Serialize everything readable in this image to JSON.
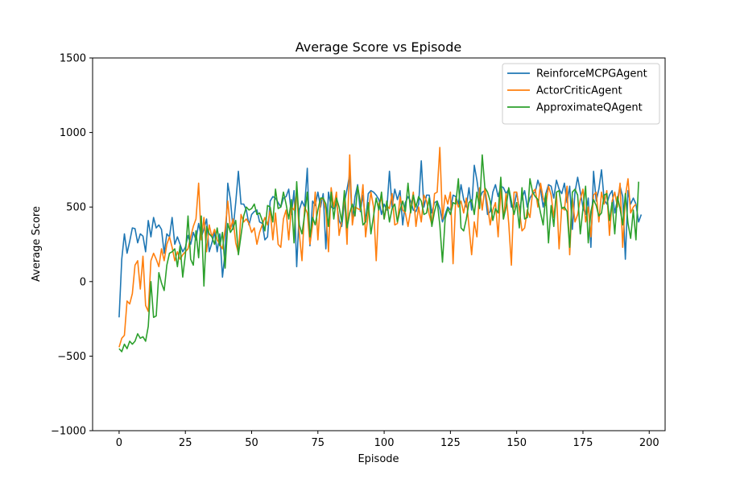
{
  "chart_data": {
    "type": "line",
    "title": "Average Score vs Episode",
    "xlabel": "Episode",
    "ylabel": "Average Score",
    "xlim": [
      -10,
      206
    ],
    "ylim": [
      -1000,
      1500
    ],
    "xticks": [
      "0",
      "25",
      "50",
      "75",
      "100",
      "125",
      "150",
      "175",
      "200"
    ],
    "yticks": [
      "−1000",
      "−500",
      "0",
      "500",
      "1000",
      "1500"
    ],
    "xtick_values": [
      0,
      25,
      50,
      75,
      100,
      125,
      150,
      175,
      200
    ],
    "ytick_values": [
      -1000,
      -500,
      0,
      500,
      1000,
      1500
    ],
    "grid": false,
    "legend_position": "top-right",
    "series": [
      {
        "name": "ReinforceMCPGAgent",
        "color": "#1f77b4",
        "values": [
          -240,
          150,
          320,
          190,
          270,
          360,
          355,
          260,
          320,
          305,
          200,
          410,
          300,
          430,
          360,
          380,
          350,
          190,
          320,
          300,
          430,
          250,
          300,
          250,
          200,
          230,
          310,
          250,
          330,
          280,
          390,
          300,
          350,
          420,
          200,
          260,
          330,
          200,
          320,
          30,
          200,
          660,
          550,
          350,
          530,
          740,
          520,
          520,
          480,
          380,
          450,
          470,
          480,
          400,
          390,
          280,
          300,
          540,
          570,
          560,
          530,
          500,
          560,
          570,
          620,
          450,
          610,
          100,
          480,
          540,
          500,
          760,
          240,
          540,
          510,
          600,
          500,
          590,
          220,
          600,
          500,
          490,
          530,
          410,
          370,
          530,
          620,
          720,
          410,
          570,
          650,
          470,
          580,
          400,
          590,
          610,
          600,
          580,
          550,
          450,
          520,
          480,
          740,
          500,
          620,
          550,
          610,
          380,
          530,
          570,
          540,
          480,
          470,
          520,
          810,
          500,
          580,
          580,
          460,
          530,
          540,
          490,
          400,
          450,
          500,
          480,
          580,
          570,
          520,
          650,
          550,
          500,
          630,
          480,
          780,
          680,
          550,
          600,
          610,
          450,
          470,
          600,
          650,
          570,
          640,
          630,
          590,
          620,
          500,
          500,
          600,
          480,
          560,
          610,
          500,
          560,
          590,
          600,
          680,
          620,
          500,
          590,
          650,
          640,
          560,
          680,
          620,
          590,
          660,
          530,
          640,
          350,
          600,
          700,
          600,
          500,
          450,
          560,
          230,
          740,
          540,
          620,
          750,
          550,
          520,
          580,
          610,
          460,
          550,
          640,
          570,
          150,
          610,
          520,
          560,
          520,
          400,
          450
        ]
      },
      {
        "name": "ActorCriticAgent",
        "color": "#ff7f0e",
        "values": [
          -440,
          -380,
          -360,
          -130,
          -150,
          -80,
          110,
          140,
          -50,
          170,
          -160,
          -200,
          140,
          190,
          150,
          100,
          220,
          140,
          250,
          300,
          230,
          140,
          200,
          150,
          180,
          200,
          220,
          300,
          370,
          420,
          660,
          280,
          430,
          200,
          380,
          300,
          350,
          280,
          250,
          220,
          350,
          540,
          350,
          420,
          260,
          190,
          450,
          400,
          420,
          390,
          330,
          360,
          250,
          330,
          380,
          430,
          380,
          480,
          280,
          460,
          250,
          230,
          420,
          480,
          280,
          500,
          480,
          600,
          320,
          140,
          500,
          460,
          250,
          380,
          600,
          280,
          550,
          560,
          480,
          200,
          630,
          500,
          600,
          310,
          410,
          580,
          250,
          850,
          380,
          500,
          490,
          480,
          650,
          300,
          460,
          600,
          500,
          140,
          520,
          560,
          420,
          510,
          490,
          590,
          380,
          390,
          570,
          480,
          460,
          370,
          480,
          600,
          370,
          500,
          400,
          580,
          540,
          450,
          380,
          590,
          600,
          900,
          420,
          580,
          520,
          600,
          120,
          560,
          500,
          540,
          460,
          560,
          370,
          180,
          400,
          300,
          630,
          480,
          630,
          510,
          380,
          480,
          530,
          300,
          620,
          420,
          590,
          390,
          110,
          600,
          600,
          480,
          340,
          360,
          480,
          430,
          600,
          620,
          500,
          660,
          560,
          510,
          640,
          580,
          430,
          590,
          220,
          500,
          480,
          640,
          180,
          560,
          400,
          450,
          550,
          620,
          400,
          500,
          300,
          580,
          600,
          400,
          600,
          520,
          610,
          310,
          540,
          600,
          500,
          660,
          230,
          570,
          690,
          460,
          500,
          520
        ]
      },
      {
        "name": "ApproximateQAgent",
        "color": "#2ca02c",
        "values": [
          -450,
          -470,
          -420,
          -450,
          -400,
          -420,
          -400,
          -350,
          -380,
          -370,
          -400,
          -300,
          0,
          -240,
          -230,
          60,
          -10,
          -60,
          110,
          190,
          200,
          220,
          100,
          240,
          30,
          180,
          440,
          150,
          110,
          340,
          160,
          440,
          -30,
          370,
          320,
          300,
          250,
          360,
          240,
          330,
          90,
          390,
          330,
          360,
          410,
          180,
          310,
          440,
          500,
          480,
          490,
          520,
          450,
          460,
          410,
          340,
          510,
          500,
          400,
          620,
          490,
          500,
          600,
          520,
          420,
          550,
          260,
          670,
          380,
          320,
          450,
          600,
          300,
          430,
          380,
          480,
          560,
          560,
          520,
          370,
          600,
          420,
          560,
          500,
          400,
          610,
          360,
          460,
          520,
          440,
          640,
          530,
          380,
          400,
          530,
          320,
          440,
          560,
          480,
          600,
          420,
          540,
          400,
          490,
          520,
          400,
          480,
          540,
          470,
          660,
          460,
          580,
          500,
          570,
          540,
          450,
          460,
          560,
          370,
          470,
          540,
          380,
          130,
          420,
          490,
          450,
          530,
          520,
          690,
          360,
          340,
          420,
          530,
          550,
          450,
          600,
          490,
          850,
          630,
          600,
          540,
          410,
          490,
          460,
          700,
          420,
          500,
          630,
          540,
          450,
          530,
          360,
          630,
          420,
          430,
          690,
          600,
          570,
          550,
          460,
          380,
          590,
          260,
          510,
          370,
          600,
          610,
          490,
          500,
          470,
          230,
          600,
          620,
          580,
          320,
          490,
          640,
          260,
          470,
          550,
          510,
          440,
          460,
          580,
          590,
          410,
          530,
          320,
          570,
          490,
          380,
          590,
          390,
          290,
          480,
          280,
          670
        ]
      }
    ]
  }
}
